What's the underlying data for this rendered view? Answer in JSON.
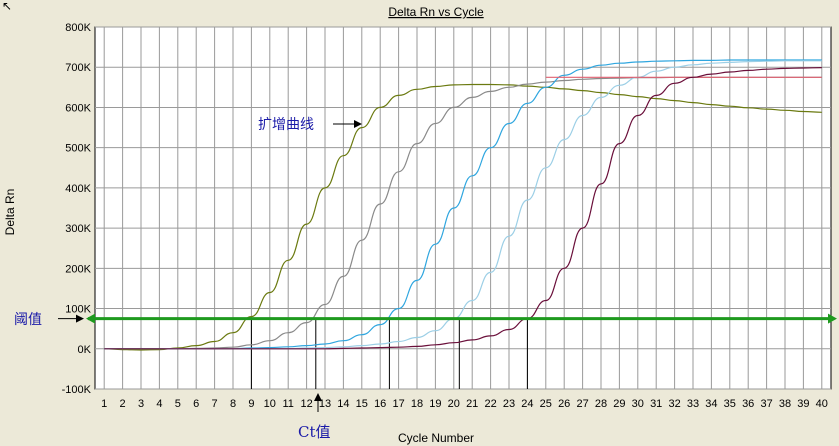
{
  "chart_data": {
    "type": "line",
    "title": "Delta Rn vs Cycle",
    "xlabel": "Cycle Number",
    "ylabel": "Delta Rn",
    "xlim": [
      0.5,
      40.5
    ],
    "ylim": [
      -100000,
      800000
    ],
    "xticks": [
      "1",
      "2",
      "3",
      "4",
      "5",
      "6",
      "7",
      "8",
      "9",
      "10",
      "11",
      "12",
      "13",
      "14",
      "15",
      "16",
      "17",
      "18",
      "19",
      "20",
      "21",
      "22",
      "23",
      "24",
      "25",
      "26",
      "27",
      "28",
      "29",
      "30",
      "31",
      "32",
      "33",
      "34",
      "35",
      "36",
      "37",
      "38",
      "39",
      "40"
    ],
    "yticks": [
      {
        "value": 800000,
        "label": "800K"
      },
      {
        "value": 700000,
        "label": "700K"
      },
      {
        "value": 600000,
        "label": "600K"
      },
      {
        "value": 500000,
        "label": "500K"
      },
      {
        "value": 400000,
        "label": "400K"
      },
      {
        "value": 300000,
        "label": "300K"
      },
      {
        "value": 200000,
        "label": "200K"
      },
      {
        "value": 100000,
        "label": "100K"
      },
      {
        "value": 0,
        "label": "0K"
      },
      {
        "value": -100000,
        "label": "-100K"
      }
    ],
    "grid": true,
    "series": [
      {
        "color": "#6b7a10",
        "x": [
          1,
          2,
          3,
          4,
          5,
          6,
          7,
          8,
          9,
          10,
          11,
          12,
          13,
          14,
          15,
          16,
          17,
          18,
          19,
          20,
          21,
          22,
          23,
          24,
          25,
          26,
          27,
          28,
          29,
          30,
          31,
          32,
          33,
          34,
          35,
          36,
          37,
          38,
          39,
          40
        ],
        "y": [
          0,
          -2000,
          -3000,
          -2000,
          2000,
          8000,
          18000,
          40000,
          80000,
          140000,
          220000,
          310000,
          400000,
          480000,
          550000,
          600000,
          630000,
          645000,
          652000,
          656000,
          657000,
          657000,
          656000,
          653000,
          650000,
          646000,
          642000,
          637000,
          632000,
          627000,
          622000,
          617000,
          612000,
          607000,
          603000,
          599000,
          596000,
          593000,
          590000,
          588000
        ]
      },
      {
        "color": "#8a8a8a",
        "x": [
          1,
          2,
          3,
          4,
          5,
          6,
          7,
          8,
          9,
          10,
          11,
          12,
          13,
          14,
          15,
          16,
          17,
          18,
          19,
          20,
          21,
          22,
          23,
          24,
          25,
          26,
          27,
          28,
          29,
          30,
          31,
          32,
          33,
          34,
          35,
          36,
          37,
          38,
          39,
          40
        ],
        "y": [
          0,
          0,
          0,
          0,
          0,
          1000,
          2000,
          4000,
          10000,
          20000,
          40000,
          65000,
          110000,
          180000,
          270000,
          360000,
          440000,
          510000,
          560000,
          600000,
          625000,
          640000,
          650000,
          658000,
          663000,
          667000,
          670000,
          672000,
          673000,
          674000,
          674000,
          675000,
          675000,
          675000,
          675000,
          675000,
          675000,
          675000,
          675000,
          675000
        ]
      },
      {
        "color": "#2fa6df",
        "x": [
          1,
          2,
          3,
          4,
          5,
          6,
          7,
          8,
          9,
          10,
          11,
          12,
          13,
          14,
          15,
          16,
          17,
          18,
          19,
          20,
          21,
          22,
          23,
          24,
          25,
          26,
          27,
          28,
          29,
          30,
          31,
          32,
          33,
          34,
          35,
          36,
          37,
          38,
          39,
          40
        ],
        "y": [
          0,
          0,
          0,
          0,
          0,
          0,
          0,
          0,
          2000,
          3000,
          5000,
          8000,
          12000,
          20000,
          35000,
          60000,
          100000,
          170000,
          260000,
          350000,
          430000,
          500000,
          560000,
          610000,
          650000,
          680000,
          695000,
          705000,
          710000,
          713000,
          715000,
          716000,
          717000,
          717000,
          718000,
          718000,
          718000,
          718000,
          718000,
          718000
        ]
      },
      {
        "color": "#9ccfe6",
        "x": [
          1,
          2,
          3,
          4,
          5,
          6,
          7,
          8,
          9,
          10,
          11,
          12,
          13,
          14,
          15,
          16,
          17,
          18,
          19,
          20,
          21,
          22,
          23,
          24,
          25,
          26,
          27,
          28,
          29,
          30,
          31,
          32,
          33,
          34,
          35,
          36,
          37,
          38,
          39,
          40
        ],
        "y": [
          0,
          0,
          0,
          0,
          0,
          0,
          0,
          0,
          0,
          0,
          0,
          2000,
          3000,
          5000,
          8000,
          12000,
          18000,
          28000,
          45000,
          75000,
          120000,
          190000,
          280000,
          370000,
          450000,
          520000,
          580000,
          625000,
          655000,
          675000,
          690000,
          700000,
          706000,
          710000,
          712000,
          714000,
          715000,
          716000,
          716000,
          716000
        ]
      },
      {
        "color": "#e06070",
        "x": [
          25,
          40
        ],
        "y": [
          675000,
          675000
        ]
      },
      {
        "color": "#6a0f3a",
        "x": [
          1,
          2,
          3,
          4,
          5,
          6,
          7,
          8,
          9,
          10,
          11,
          12,
          13,
          14,
          15,
          16,
          17,
          18,
          19,
          20,
          21,
          22,
          23,
          24,
          25,
          26,
          27,
          28,
          29,
          30,
          31,
          32,
          33,
          34,
          35,
          36,
          37,
          38,
          39,
          40
        ],
        "y": [
          0,
          0,
          0,
          0,
          0,
          0,
          0,
          0,
          0,
          0,
          0,
          0,
          0,
          1000,
          2000,
          3000,
          4000,
          6000,
          10000,
          15000,
          22000,
          32000,
          48000,
          75000,
          120000,
          200000,
          300000,
          410000,
          510000,
          580000,
          630000,
          660000,
          675000,
          683000,
          688000,
          692000,
          695000,
          697000,
          698000,
          699000
        ]
      }
    ],
    "threshold": {
      "value": 75000,
      "color": "#1e9a1e"
    },
    "ct_markers": [
      9,
      12.5,
      16.5,
      20.3,
      24
    ],
    "annotations": {
      "curve_label": "扩增曲线",
      "threshold_label": "阈值",
      "ct_label": "Ct值"
    }
  }
}
